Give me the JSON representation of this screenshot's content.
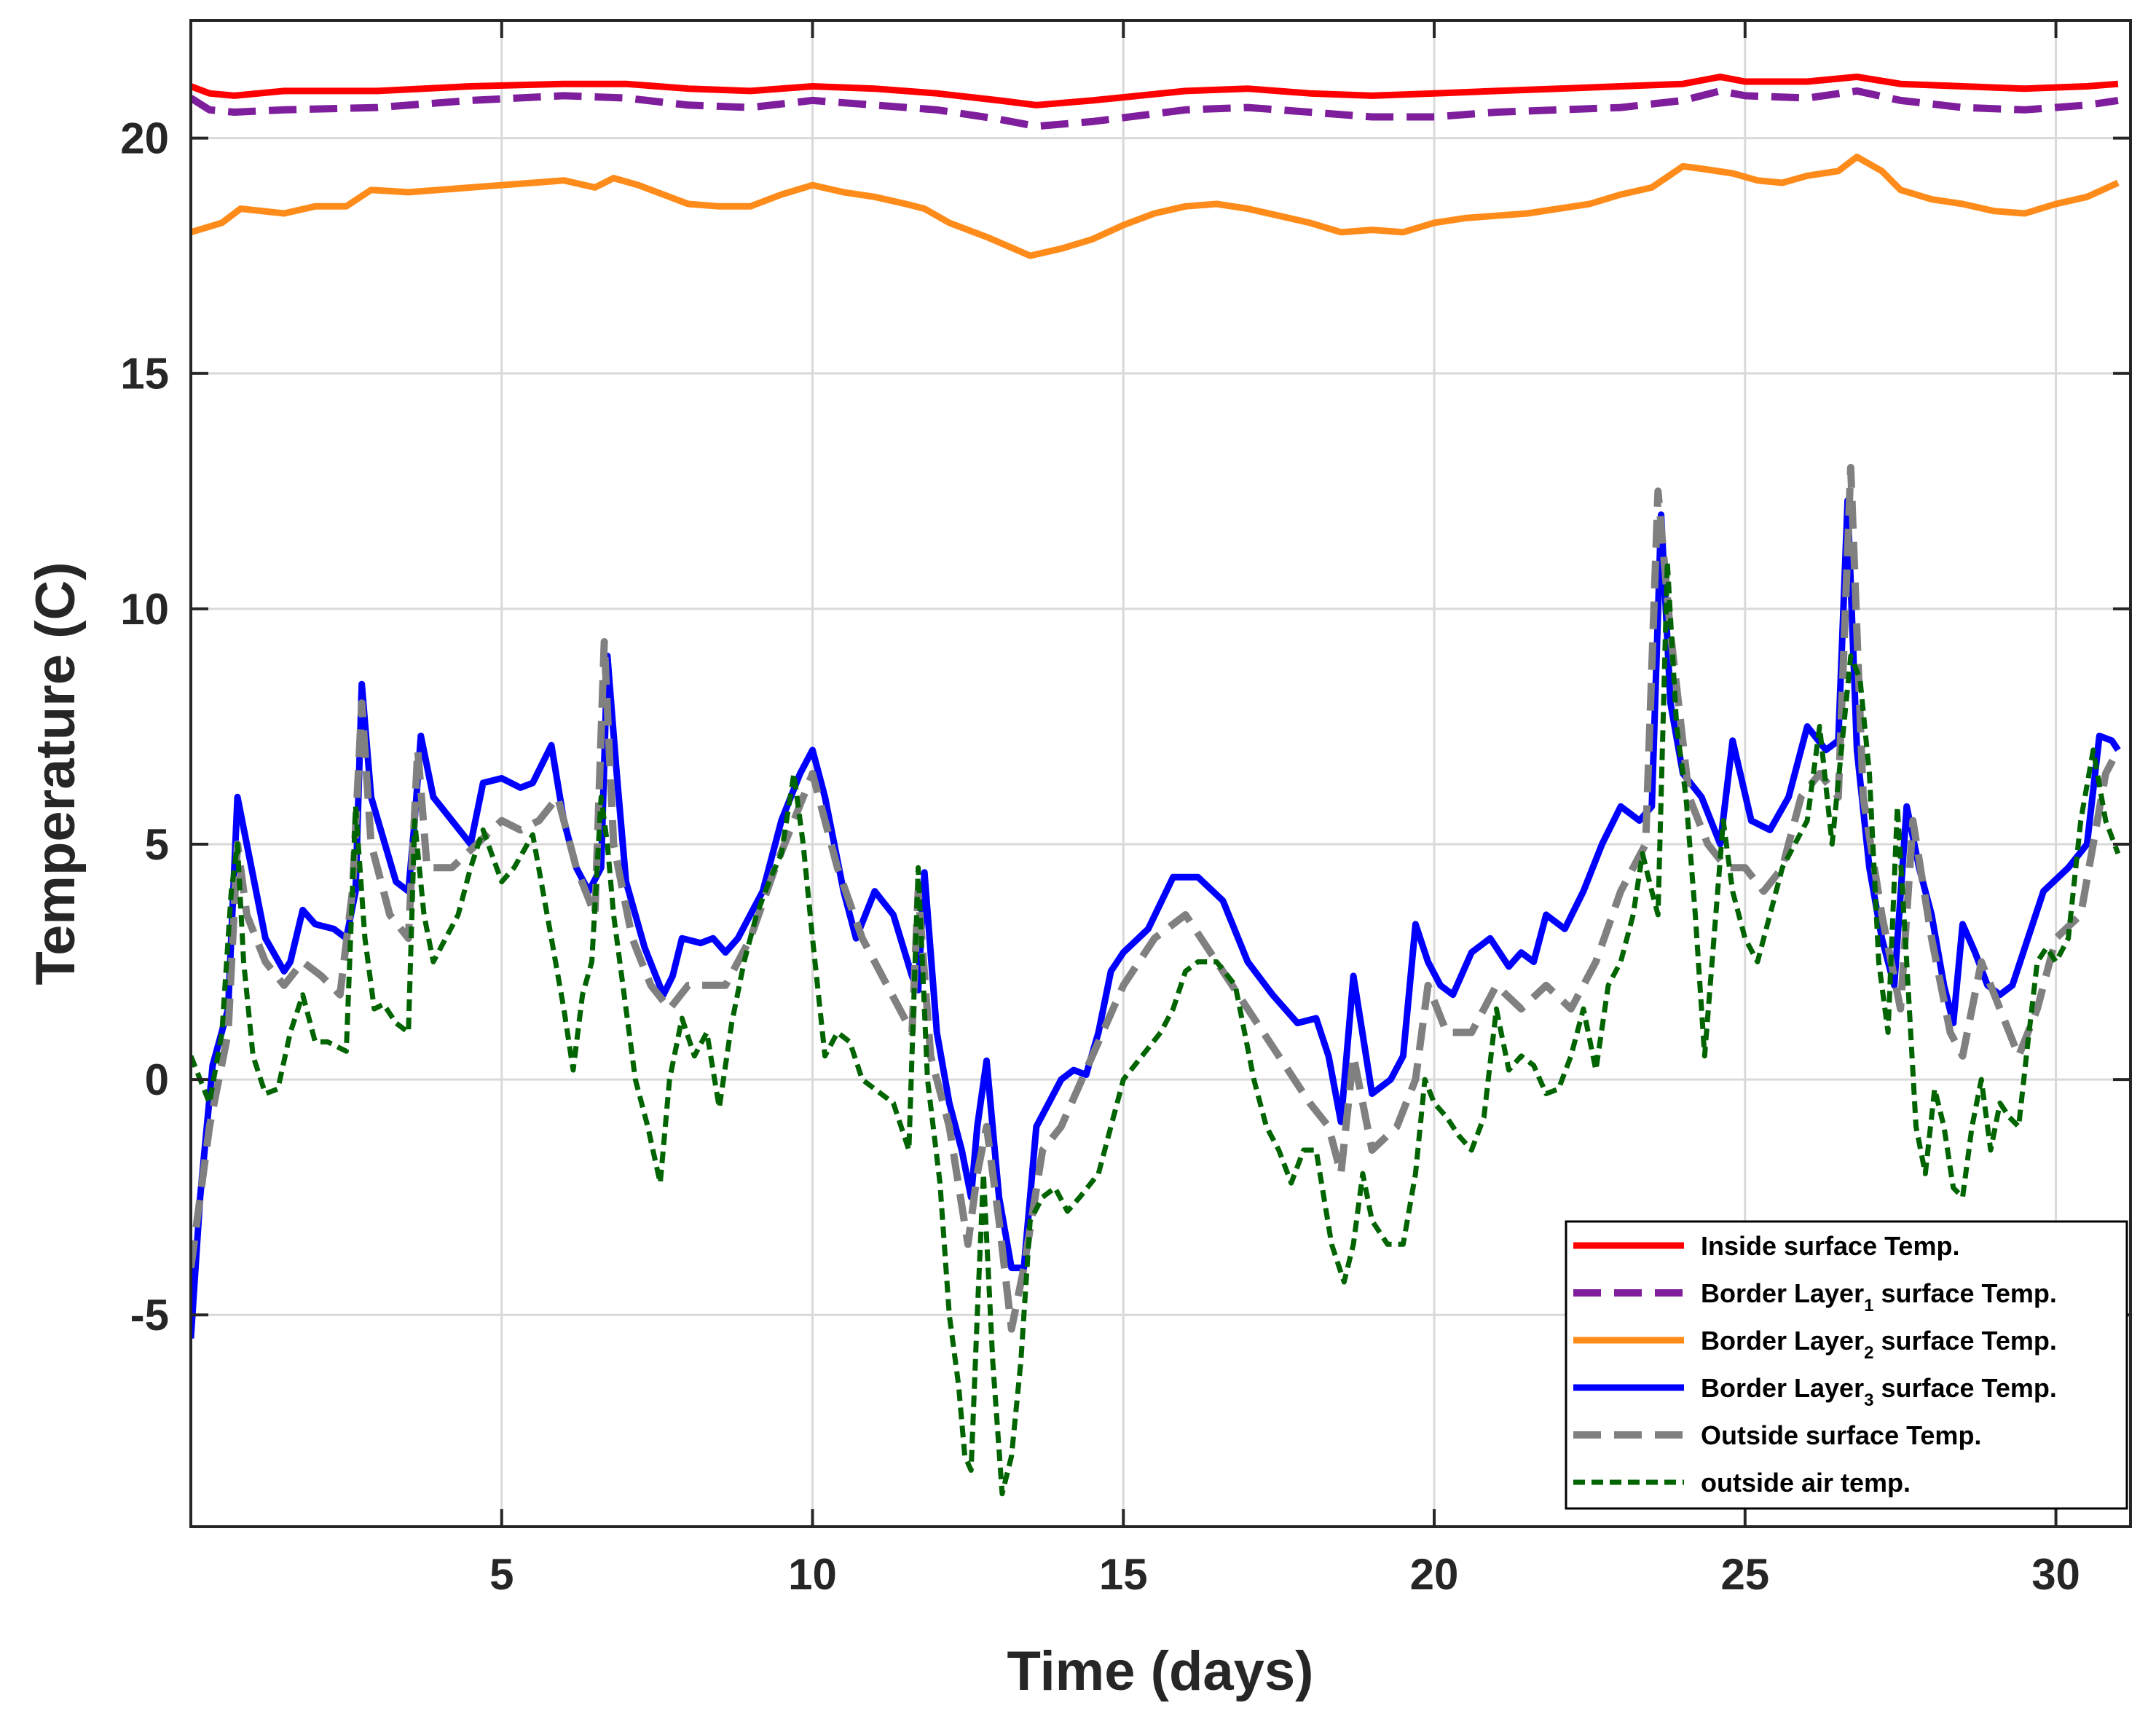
{
  "chart_data": {
    "type": "line",
    "title": "",
    "xlabel": "Time (days)",
    "ylabel": "Temperature (C)",
    "xlim": [
      0,
      31.2
    ],
    "ylim": [
      -9.5,
      22.5
    ],
    "xticks": [
      5,
      10,
      15,
      20,
      25,
      30
    ],
    "yticks": [
      -5,
      0,
      5,
      10,
      15,
      20
    ],
    "grid": true,
    "legend_position": "bottom-right",
    "series": [
      {
        "name": "Inside surface Temp.",
        "legend_prefix": "Inside surface Temp.",
        "legend_sub": "",
        "legend_suffix": "",
        "color": "#ff0000",
        "style": "solid",
        "x": [
          0,
          0.3,
          0.7,
          1.5,
          3,
          4.5,
          6,
          7,
          8,
          9,
          10,
          11,
          12,
          13,
          13.6,
          14.5,
          16,
          17,
          18,
          19,
          20,
          21,
          22,
          23,
          24,
          24.6,
          25,
          26,
          26.8,
          27.5,
          28.5,
          29.5,
          30.5,
          31
        ],
        "y": [
          21.1,
          20.95,
          20.9,
          21.0,
          21.0,
          21.1,
          21.15,
          21.15,
          21.05,
          21.0,
          21.1,
          21.05,
          20.95,
          20.8,
          20.7,
          20.8,
          21.0,
          21.05,
          20.95,
          20.9,
          20.95,
          21.0,
          21.05,
          21.1,
          21.15,
          21.3,
          21.2,
          21.2,
          21.3,
          21.15,
          21.1,
          21.05,
          21.1,
          21.15
        ]
      },
      {
        "name": "Border Layer1 surface Temp.",
        "legend_prefix": "Border Layer",
        "legend_sub": "1",
        "legend_suffix": " surface Temp.",
        "color": "#7e1e9c",
        "style": "dashed",
        "x": [
          0,
          0.3,
          0.7,
          1.5,
          3,
          4.5,
          6,
          7,
          8,
          9,
          10,
          11,
          12,
          13,
          13.6,
          14.5,
          16,
          17,
          18,
          19,
          20,
          21,
          22,
          23,
          24,
          24.6,
          25,
          26,
          26.8,
          27.5,
          28.5,
          29.5,
          30.5,
          31
        ],
        "y": [
          20.85,
          20.6,
          20.55,
          20.6,
          20.65,
          20.8,
          20.9,
          20.85,
          20.7,
          20.65,
          20.8,
          20.7,
          20.6,
          20.4,
          20.25,
          20.35,
          20.6,
          20.65,
          20.55,
          20.45,
          20.45,
          20.55,
          20.6,
          20.65,
          20.8,
          21.0,
          20.9,
          20.85,
          21.0,
          20.8,
          20.65,
          20.6,
          20.7,
          20.8
        ]
      },
      {
        "name": "Border Layer2 surface Temp.",
        "legend_prefix": "Border Layer",
        "legend_sub": "2",
        "legend_suffix": " surface Temp.",
        "color": "#ff8c1a",
        "style": "solid",
        "x": [
          0,
          0.5,
          0.8,
          1.5,
          2,
          2.5,
          2.9,
          3.5,
          4,
          4.5,
          5,
          5.5,
          6,
          6.5,
          6.8,
          7.2,
          7.6,
          8,
          8.5,
          9,
          9.5,
          10,
          10.5,
          11,
          11.5,
          11.8,
          12.2,
          12.8,
          13.5,
          14,
          14.5,
          15,
          15.5,
          16,
          16.5,
          17,
          17.5,
          18,
          18.5,
          19,
          19.5,
          20,
          20.5,
          21,
          21.5,
          22,
          22.5,
          23,
          23.5,
          24,
          24.3,
          24.8,
          25.2,
          25.6,
          26,
          26.5,
          26.8,
          27.2,
          27.5,
          28,
          28.5,
          29,
          29.5,
          30,
          30.5,
          31
        ],
        "y": [
          18.0,
          18.2,
          18.5,
          18.4,
          18.55,
          18.55,
          18.9,
          18.85,
          18.9,
          18.95,
          19.0,
          19.05,
          19.1,
          18.95,
          19.15,
          19.0,
          18.8,
          18.6,
          18.55,
          18.55,
          18.8,
          19.0,
          18.85,
          18.75,
          18.6,
          18.5,
          18.2,
          17.9,
          17.5,
          17.65,
          17.85,
          18.15,
          18.4,
          18.55,
          18.6,
          18.5,
          18.35,
          18.2,
          18.0,
          18.05,
          18.0,
          18.2,
          18.3,
          18.35,
          18.4,
          18.5,
          18.6,
          18.8,
          18.95,
          19.4,
          19.35,
          19.25,
          19.1,
          19.05,
          19.2,
          19.3,
          19.6,
          19.3,
          18.9,
          18.7,
          18.6,
          18.45,
          18.4,
          18.6,
          18.75,
          19.05
        ]
      },
      {
        "name": "Border Layer3 surface Temp.",
        "legend_prefix": "Border Layer",
        "legend_sub": "3",
        "legend_suffix": " surface Temp.",
        "color": "#0000ff",
        "style": "solid",
        "x": [
          0,
          0.15,
          0.35,
          0.6,
          0.75,
          0.9,
          1.2,
          1.5,
          1.6,
          1.8,
          2.0,
          2.3,
          2.5,
          2.65,
          2.75,
          2.9,
          3.3,
          3.5,
          3.6,
          3.7,
          3.9,
          4.2,
          4.5,
          4.7,
          5.0,
          5.3,
          5.5,
          5.8,
          6.0,
          6.2,
          6.4,
          6.6,
          6.7,
          6.85,
          7.0,
          7.3,
          7.6,
          7.75,
          7.9,
          8.2,
          8.4,
          8.6,
          8.8,
          9.2,
          9.5,
          9.8,
          10.0,
          10.2,
          10.5,
          10.7,
          11.0,
          11.3,
          11.6,
          11.7,
          11.8,
          12.0,
          12.2,
          12.4,
          12.55,
          12.65,
          12.8,
          13.0,
          13.2,
          13.4,
          13.6,
          13.8,
          14.0,
          14.2,
          14.4,
          14.6,
          14.8,
          15.0,
          15.4,
          15.8,
          16.2,
          16.6,
          17.0,
          17.4,
          17.8,
          18.1,
          18.3,
          18.5,
          18.7,
          19.0,
          19.3,
          19.5,
          19.7,
          19.9,
          20.1,
          20.3,
          20.6,
          20.9,
          21.2,
          21.4,
          21.6,
          21.8,
          22.1,
          22.4,
          22.7,
          23.0,
          23.3,
          23.5,
          23.65,
          23.8,
          24.0,
          24.3,
          24.6,
          24.8,
          25.1,
          25.4,
          25.7,
          26.0,
          26.3,
          26.5,
          26.65,
          26.8,
          27.0,
          27.2,
          27.4,
          27.6,
          27.8,
          28.0,
          28.2,
          28.35,
          28.5,
          28.7,
          28.9,
          29.1,
          29.3,
          29.5,
          29.8,
          30.2,
          30.5,
          30.7,
          30.9,
          31.0
        ],
        "y": [
          -5.5,
          -2.5,
          0.3,
          1.5,
          6.0,
          5.0,
          3.0,
          2.3,
          2.5,
          3.6,
          3.3,
          3.2,
          3.0,
          4.0,
          8.4,
          6.0,
          4.2,
          4.0,
          5.5,
          7.3,
          6.0,
          5.5,
          5.0,
          6.3,
          6.4,
          6.2,
          6.3,
          7.1,
          5.5,
          4.5,
          4.0,
          4.5,
          9.0,
          6.5,
          4.2,
          2.8,
          1.8,
          2.2,
          3.0,
          2.9,
          3.0,
          2.7,
          3.0,
          4.0,
          5.5,
          6.5,
          7.0,
          6.0,
          4.0,
          3.0,
          4.0,
          3.5,
          2.2,
          1.9,
          4.4,
          1.0,
          -0.5,
          -1.5,
          -2.5,
          -1.0,
          0.4,
          -2.5,
          -4.0,
          -4.0,
          -1.0,
          -0.5,
          0.0,
          0.2,
          0.1,
          1.0,
          2.3,
          2.7,
          3.2,
          4.3,
          4.3,
          3.8,
          2.5,
          1.8,
          1.2,
          1.3,
          0.5,
          -0.9,
          2.2,
          -0.3,
          0.0,
          0.5,
          3.3,
          2.5,
          2.0,
          1.8,
          2.7,
          3.0,
          2.4,
          2.7,
          2.5,
          3.5,
          3.2,
          4.0,
          5.0,
          5.8,
          5.5,
          5.8,
          12.0,
          8.0,
          6.5,
          6.0,
          5.0,
          7.2,
          5.5,
          5.3,
          6.0,
          7.5,
          7.0,
          7.2,
          12.3,
          7.0,
          4.5,
          3.0,
          2.0,
          5.8,
          4.5,
          3.5,
          2.0,
          1.2,
          3.3,
          2.7,
          2.0,
          1.8,
          2.0,
          2.8,
          4.0,
          4.5,
          5.0,
          7.3,
          7.2,
          7.0
        ]
      },
      {
        "name": "Outside surface Temp.",
        "legend_prefix": "Outside surface Temp.",
        "legend_sub": "",
        "legend_suffix": "",
        "color": "#808080",
        "style": "dashed",
        "x": [
          0,
          0.3,
          0.6,
          0.75,
          0.9,
          1.2,
          1.5,
          1.8,
          2.1,
          2.4,
          2.6,
          2.75,
          2.9,
          3.2,
          3.5,
          3.65,
          3.8,
          4.2,
          4.6,
          5.0,
          5.3,
          5.6,
          5.9,
          6.2,
          6.5,
          6.65,
          6.8,
          7.1,
          7.4,
          7.7,
          8.0,
          8.3,
          8.6,
          9.0,
          9.4,
          9.7,
          10.0,
          10.4,
          10.8,
          11.2,
          11.6,
          11.7,
          11.9,
          12.2,
          12.5,
          12.65,
          12.8,
          13.0,
          13.2,
          13.4,
          13.7,
          14.0,
          14.5,
          15.0,
          15.5,
          16.0,
          16.5,
          17.0,
          17.5,
          18.0,
          18.3,
          18.5,
          18.7,
          19.0,
          19.4,
          19.7,
          19.9,
          20.2,
          20.6,
          21.0,
          21.4,
          21.8,
          22.2,
          22.6,
          23.0,
          23.4,
          23.6,
          23.8,
          24.1,
          24.4,
          24.7,
          25.0,
          25.3,
          25.6,
          25.9,
          26.2,
          26.5,
          26.7,
          26.9,
          27.2,
          27.5,
          27.7,
          28.0,
          28.3,
          28.5,
          28.8,
          29.1,
          29.4,
          29.7,
          30.0,
          30.4,
          30.8,
          31.0
        ],
        "y": [
          -4.0,
          -1.0,
          1.0,
          5.0,
          3.5,
          2.5,
          2.0,
          2.5,
          2.2,
          1.8,
          4.0,
          8.0,
          5.0,
          3.5,
          3.0,
          7.0,
          4.5,
          4.5,
          5.0,
          5.5,
          5.3,
          5.5,
          6.0,
          4.5,
          3.5,
          9.3,
          5.0,
          3.0,
          2.0,
          1.5,
          2.0,
          2.0,
          2.0,
          3.0,
          4.5,
          5.5,
          6.5,
          4.5,
          3.0,
          2.0,
          1.0,
          4.0,
          0.5,
          -1.0,
          -3.5,
          -2.0,
          -1.0,
          -3.0,
          -5.3,
          -4.0,
          -1.5,
          -1.0,
          0.5,
          2.0,
          3.0,
          3.5,
          2.5,
          1.5,
          0.5,
          -0.5,
          -1.0,
          -2.0,
          0.5,
          -1.5,
          -1.0,
          0.0,
          2.0,
          1.0,
          1.0,
          2.0,
          1.5,
          2.0,
          1.5,
          2.5,
          4.0,
          5.0,
          12.5,
          9.5,
          6.0,
          5.0,
          4.5,
          4.5,
          4.0,
          4.5,
          6.0,
          6.5,
          6.0,
          13.0,
          6.0,
          3.5,
          1.5,
          5.5,
          3.0,
          1.0,
          0.5,
          2.5,
          1.5,
          0.5,
          1.5,
          3.0,
          3.5,
          6.5,
          7.0
        ]
      },
      {
        "name": "outside air temp.",
        "legend_prefix": "outside air temp.",
        "legend_sub": "",
        "legend_suffix": "",
        "color": "#006400",
        "style": "dotted",
        "x": [
          0,
          0.15,
          0.3,
          0.5,
          0.65,
          0.75,
          0.85,
          1.0,
          1.2,
          1.4,
          1.6,
          1.8,
          2.0,
          2.2,
          2.5,
          2.65,
          2.8,
          2.95,
          3.1,
          3.3,
          3.5,
          3.6,
          3.75,
          3.9,
          4.1,
          4.3,
          4.5,
          4.7,
          5.0,
          5.2,
          5.5,
          5.8,
          6.0,
          6.15,
          6.3,
          6.45,
          6.6,
          6.7,
          6.8,
          6.95,
          7.15,
          7.35,
          7.55,
          7.7,
          7.9,
          8.1,
          8.3,
          8.5,
          8.7,
          8.9,
          9.1,
          9.3,
          9.5,
          9.7,
          9.85,
          10.0,
          10.2,
          10.4,
          10.6,
          10.8,
          11.0,
          11.3,
          11.55,
          11.7,
          11.85,
          12.05,
          12.2,
          12.35,
          12.45,
          12.55,
          12.65,
          12.75,
          12.9,
          13.05,
          13.2,
          13.35,
          13.5,
          13.7,
          13.9,
          14.1,
          14.3,
          14.6,
          15.0,
          15.3,
          15.6,
          15.8,
          16.0,
          16.2,
          16.5,
          16.8,
          17.1,
          17.3,
          17.5,
          17.7,
          17.9,
          18.1,
          18.35,
          18.55,
          18.7,
          18.85,
          19.0,
          19.25,
          19.5,
          19.7,
          19.85,
          20.0,
          20.2,
          20.4,
          20.6,
          20.8,
          21.0,
          21.2,
          21.4,
          21.6,
          21.8,
          22.0,
          22.2,
          22.4,
          22.6,
          22.8,
          23.0,
          23.2,
          23.35,
          23.5,
          23.6,
          23.75,
          23.9,
          24.05,
          24.2,
          24.35,
          24.5,
          24.65,
          24.8,
          25.0,
          25.2,
          25.4,
          25.6,
          25.8,
          26.0,
          26.2,
          26.4,
          26.55,
          26.7,
          26.85,
          27.0,
          27.15,
          27.3,
          27.45,
          27.6,
          27.75,
          27.9,
          28.05,
          28.2,
          28.35,
          28.5,
          28.65,
          28.8,
          28.95,
          29.1,
          29.25,
          29.4,
          29.55,
          29.7,
          29.85,
          30.0,
          30.2,
          30.4,
          30.6,
          30.8,
          31.0
        ],
        "y": [
          0.5,
          0.0,
          -0.5,
          1.0,
          4.0,
          5.0,
          2.5,
          0.5,
          -0.3,
          -0.2,
          1.0,
          1.8,
          0.8,
          0.8,
          0.6,
          5.8,
          3.0,
          1.5,
          1.6,
          1.2,
          1.0,
          5.5,
          3.5,
          2.5,
          3.0,
          3.5,
          4.5,
          5.3,
          4.2,
          4.5,
          5.2,
          3.0,
          1.5,
          0.2,
          1.8,
          2.5,
          6.0,
          5.0,
          3.5,
          2.0,
          0.0,
          -1.0,
          -2.2,
          0.0,
          1.3,
          0.5,
          1.0,
          -0.6,
          1.2,
          2.5,
          3.5,
          4.2,
          4.8,
          6.5,
          5.0,
          3.0,
          0.5,
          1.0,
          0.8,
          0.0,
          -0.2,
          -0.5,
          -1.5,
          4.5,
          0.0,
          -2.2,
          -5.0,
          -6.5,
          -8.0,
          -8.3,
          -5.0,
          -2.0,
          -6.0,
          -8.8,
          -8.0,
          -6.0,
          -3.0,
          -2.5,
          -2.3,
          -2.8,
          -2.5,
          -2.0,
          0.0,
          0.5,
          1.0,
          1.5,
          2.3,
          2.5,
          2.5,
          2.0,
          0.0,
          -1.0,
          -1.5,
          -2.2,
          -1.5,
          -1.5,
          -3.5,
          -4.3,
          -3.5,
          -2.0,
          -3.0,
          -3.5,
          -3.5,
          -2.0,
          0.0,
          -0.5,
          -0.8,
          -1.2,
          -1.5,
          -0.8,
          1.5,
          0.2,
          0.5,
          0.3,
          -0.3,
          -0.2,
          0.5,
          1.5,
          0.2,
          2.0,
          2.5,
          3.5,
          4.8,
          4.0,
          3.5,
          11.0,
          7.5,
          6.0,
          3.5,
          0.5,
          3.0,
          5.5,
          4.0,
          3.0,
          2.5,
          3.5,
          4.5,
          5.0,
          5.5,
          7.5,
          5.0,
          7.0,
          9.0,
          8.5,
          6.5,
          2.5,
          1.0,
          5.8,
          2.5,
          -1.0,
          -2.0,
          -0.2,
          -1.0,
          -2.3,
          -2.5,
          -1.0,
          0.0,
          -1.5,
          -0.5,
          -0.8,
          -1.0,
          0.8,
          2.5,
          2.8,
          2.5,
          3.0,
          5.5,
          7.0,
          5.5,
          4.8
        ]
      }
    ]
  }
}
